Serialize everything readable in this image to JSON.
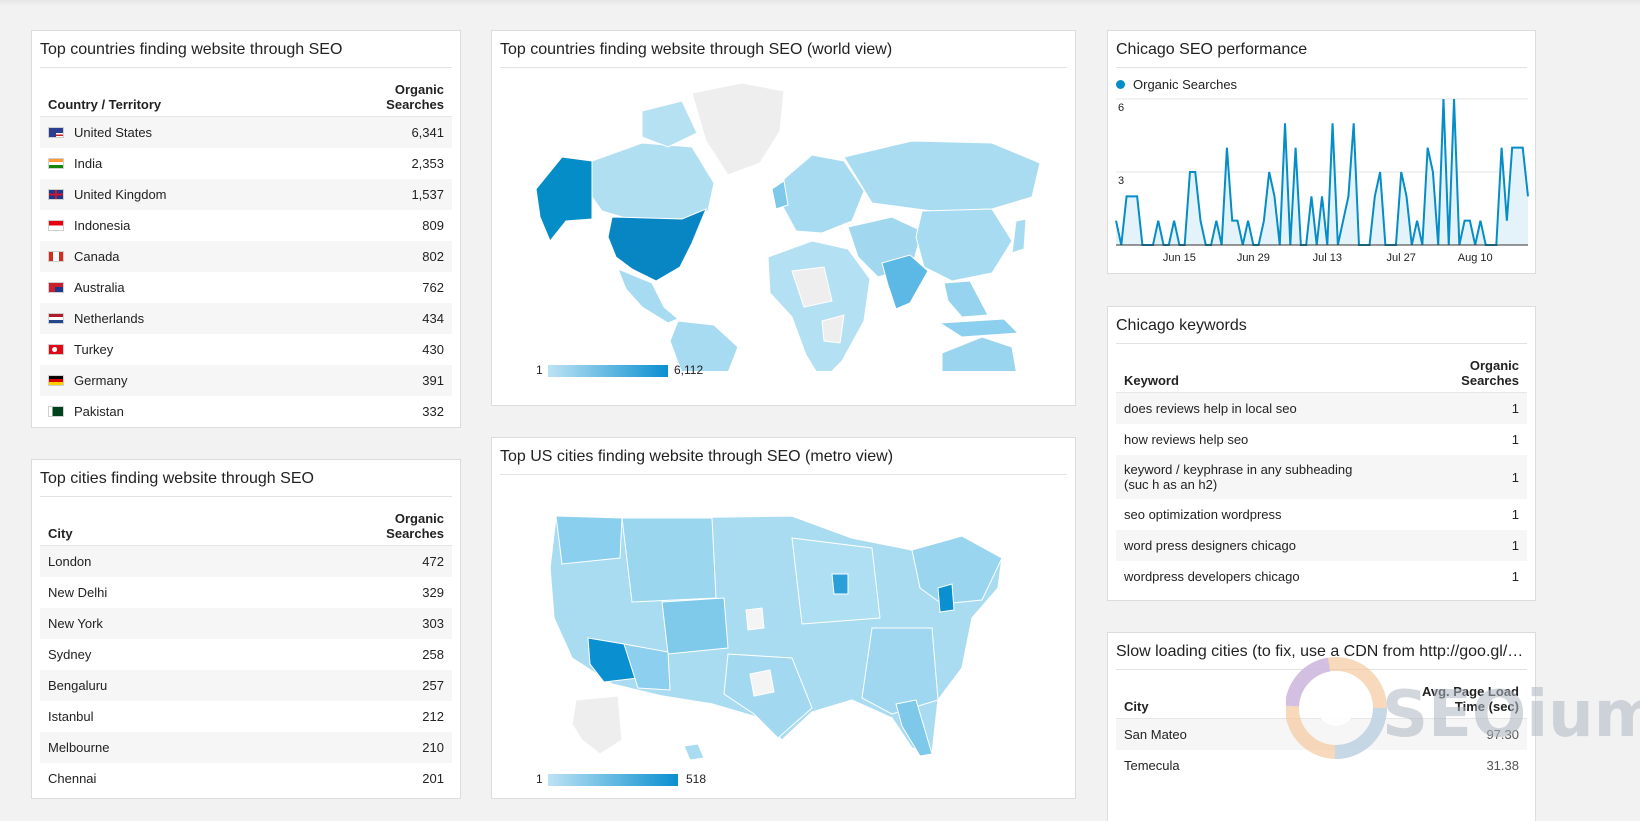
{
  "colors": {
    "accent": "#058dc7",
    "map_low": "#bde3f4",
    "map_high": "#0a8fd0"
  },
  "countries_table": {
    "title": "Top countries finding website through SEO",
    "col_country": "Country / Territory",
    "col_searches": "Organic Searches",
    "rows": [
      {
        "flag": "us-flag-icon",
        "name": "United States",
        "value": "6,341"
      },
      {
        "flag": "india-flag-icon",
        "name": "India",
        "value": "2,353"
      },
      {
        "flag": "uk-flag-icon",
        "name": "United Kingdom",
        "value": "1,537"
      },
      {
        "flag": "indonesia-flag-icon",
        "name": "Indonesia",
        "value": "809"
      },
      {
        "flag": "canada-flag-icon",
        "name": "Canada",
        "value": "802"
      },
      {
        "flag": "australia-flag-icon",
        "name": "Australia",
        "value": "762"
      },
      {
        "flag": "netherlands-flag-icon",
        "name": "Netherlands",
        "value": "434"
      },
      {
        "flag": "turkey-flag-icon",
        "name": "Turkey",
        "value": "430"
      },
      {
        "flag": "germany-flag-icon",
        "name": "Germany",
        "value": "391"
      },
      {
        "flag": "pakistan-flag-icon",
        "name": "Pakistan",
        "value": "332"
      }
    ]
  },
  "cities_table": {
    "title": "Top cities finding website through SEO",
    "col_city": "City",
    "col_searches": "Organic Searches",
    "rows": [
      {
        "name": "London",
        "value": "472"
      },
      {
        "name": "New Delhi",
        "value": "329"
      },
      {
        "name": "New York",
        "value": "303"
      },
      {
        "name": "Sydney",
        "value": "258"
      },
      {
        "name": "Bengaluru",
        "value": "257"
      },
      {
        "name": "Istanbul",
        "value": "212"
      },
      {
        "name": "Melbourne",
        "value": "210"
      },
      {
        "name": "Chennai",
        "value": "201"
      }
    ]
  },
  "world_map": {
    "title": "Top countries finding website through SEO (world view)",
    "legend_min": "1",
    "legend_max": "6,112"
  },
  "us_map": {
    "title": "Top US cities finding website through SEO (metro view)",
    "legend_min": "1",
    "legend_max": "518"
  },
  "chicago_performance": {
    "title": "Chicago SEO performance",
    "legend": "Organic Searches",
    "chart_data": {
      "type": "area",
      "series_name": "Organic Searches",
      "y_ticks": [
        "6",
        "3"
      ],
      "ylim": [
        0,
        6
      ],
      "x_ticks": [
        "Jun 15",
        "Jun 29",
        "Jul 13",
        "Jul 27",
        "Aug 10"
      ],
      "values": [
        1,
        0,
        2,
        2,
        2,
        0,
        0,
        0,
        1,
        0,
        0,
        1,
        0,
        0,
        3,
        3,
        1,
        0,
        0,
        1,
        0,
        4,
        1,
        1,
        0,
        1,
        0,
        0,
        1,
        3,
        2,
        0,
        5,
        0,
        4,
        0,
        0,
        2,
        0,
        2,
        0,
        5,
        0,
        1,
        2,
        5,
        0,
        0,
        0,
        2,
        3,
        0,
        0,
        0,
        3,
        2,
        0,
        1,
        0,
        4,
        3,
        0,
        6,
        0,
        6,
        0,
        1,
        1,
        0,
        1,
        0,
        0,
        0,
        4,
        1,
        4,
        4,
        4,
        2
      ]
    }
  },
  "chicago_keywords": {
    "title": "Chicago keywords",
    "col_keyword": "Keyword",
    "col_searches": "Organic Searches",
    "rows": [
      {
        "keyword": "does reviews help in local seo",
        "value": "1"
      },
      {
        "keyword": "how reviews help seo",
        "value": "1"
      },
      {
        "keyword": "keyword / keyphrase in any subheading (suc h as an h2)",
        "value": "1"
      },
      {
        "keyword": "seo optimization wordpress",
        "value": "1"
      },
      {
        "keyword": "word press designers chicago",
        "value": "1"
      },
      {
        "keyword": "wordpress developers chicago",
        "value": "1"
      }
    ]
  },
  "slow_cities": {
    "title": "Slow loading cities (to fix, use a CDN from http://goo.gl/o...",
    "col_city": "City",
    "col_time": "Avg. Page Load Time (sec)",
    "rows": [
      {
        "name": "San Mateo",
        "value": "97.30"
      },
      {
        "name": "Temecula",
        "value": "31.38"
      }
    ]
  },
  "watermark": {
    "icon": "seoium-logo-icon",
    "text": "SEOium"
  }
}
